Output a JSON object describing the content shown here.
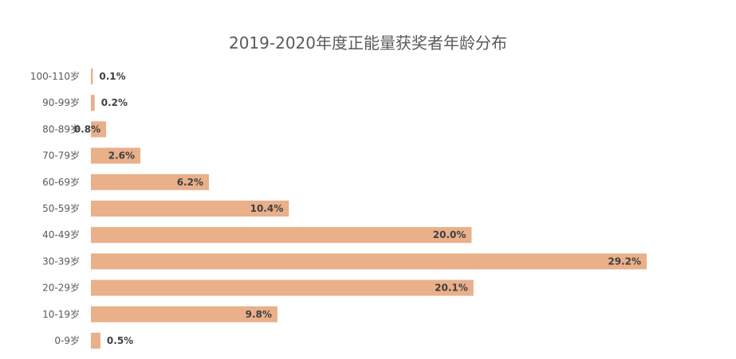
{
  "chart_data": {
    "type": "bar",
    "orientation": "horizontal",
    "title": "2019-2020年度正能量获奖者年龄分布",
    "categories": [
      "100-110岁",
      "90-99岁",
      "80-89岁",
      "70-79岁",
      "60-69岁",
      "50-59岁",
      "40-49岁",
      "30-39岁",
      "20-29岁",
      "10-19岁",
      "0-9岁"
    ],
    "values": [
      0.1,
      0.2,
      0.8,
      2.6,
      6.2,
      10.4,
      20.0,
      29.2,
      20.1,
      9.8,
      0.5
    ],
    "value_labels": [
      "0.1%",
      "0.2%",
      "0.8%",
      "2.6%",
      "6.2%",
      "10.4%",
      "20.0%",
      "29.2%",
      "20.1%",
      "9.8%",
      "0.5%"
    ],
    "unit": "%",
    "xlim": [
      0,
      29.2
    ],
    "grid": false,
    "legend": "none",
    "bar_color": "#E9B08A"
  }
}
